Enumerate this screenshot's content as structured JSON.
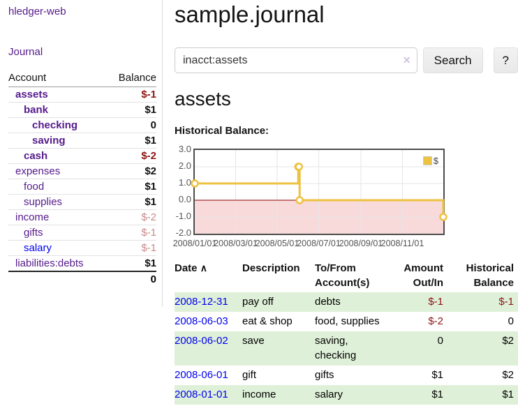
{
  "app": {
    "brand": "hledger-web",
    "nav_journal": "Journal"
  },
  "colors": {
    "visited_link": "#551a8b",
    "unvisited_link": "#0000ee",
    "negative_strong": "#8e1414",
    "negative_weak": "#c98a8a",
    "row_stripe_green": "#dff0d8",
    "chart_line": "#edc240",
    "chart_negative_region": "#f9dada",
    "chart_zero_line": "#8b0000"
  },
  "sidebar": {
    "header": {
      "account": "Account",
      "balance": "Balance"
    },
    "accounts": [
      {
        "name": "assets",
        "balance": "$-1",
        "depth": 1,
        "emphasis": true,
        "unvisited": false
      },
      {
        "name": "bank",
        "balance": "$1",
        "depth": 2,
        "emphasis": true,
        "unvisited": false
      },
      {
        "name": "checking",
        "balance": "0",
        "depth": 3,
        "emphasis": true,
        "unvisited": false
      },
      {
        "name": "saving",
        "balance": "$1",
        "depth": 3,
        "emphasis": true,
        "unvisited": false
      },
      {
        "name": "cash",
        "balance": "$-2",
        "depth": 2,
        "emphasis": true,
        "unvisited": false
      },
      {
        "name": "expenses",
        "balance": "$2",
        "depth": 1,
        "emphasis": false,
        "unvisited": false
      },
      {
        "name": "food",
        "balance": "$1",
        "depth": 2,
        "emphasis": false,
        "unvisited": false
      },
      {
        "name": "supplies",
        "balance": "$1",
        "depth": 2,
        "emphasis": false,
        "unvisited": false
      },
      {
        "name": "income",
        "balance": "$-2",
        "depth": 1,
        "emphasis": false,
        "unvisited": false
      },
      {
        "name": "gifts",
        "balance": "$-1",
        "depth": 2,
        "emphasis": false,
        "unvisited": false
      },
      {
        "name": "salary",
        "balance": "$-1",
        "depth": 2,
        "emphasis": false,
        "unvisited": true
      },
      {
        "name": "liabilities:debts",
        "balance": "$1",
        "depth": 1,
        "emphasis": false,
        "unvisited": false
      }
    ],
    "total": "0"
  },
  "header": {
    "title": "sample.journal"
  },
  "search": {
    "value": "inacct:assets",
    "clear_icon": "✕",
    "button_label": "Search",
    "help_label": "?"
  },
  "account_page": {
    "title": "assets",
    "chart_label": "Historical Balance:"
  },
  "chart_data": {
    "type": "line",
    "step": true,
    "title": "Historical Balance:",
    "series": [
      {
        "name": "$",
        "color": "#edc240",
        "points": [
          [
            "2008-01-01",
            1
          ],
          [
            "2008-06-01",
            2
          ],
          [
            "2008-06-02",
            2
          ],
          [
            "2008-06-03",
            0
          ],
          [
            "2008-12-31",
            -1
          ]
        ]
      }
    ],
    "xlim": [
      "2008-01-01",
      "2008-12-31"
    ],
    "ylim": [
      -2,
      3
    ],
    "y_ticks": [
      3.0,
      2.0,
      1.0,
      0.0,
      -1.0,
      -2.0
    ],
    "x_ticks": [
      "2008/01/01",
      "2008/03/01",
      "2008/05/01",
      "2008/07/01",
      "2008/09/01",
      "2008/11/01"
    ],
    "grid": true,
    "legend": "$",
    "legend_position": "top-right",
    "negative_region_color": "#f9dada",
    "zero_line_color": "#8b0000"
  },
  "register": {
    "columns": [
      "Date",
      "Description",
      "To/From Account(s)",
      "Amount Out/In",
      "Historical Balance"
    ],
    "sort_icon": "∧",
    "rows": [
      {
        "date": "2008-12-31",
        "description": "pay off",
        "accounts": "debts",
        "amount": "$-1",
        "balance": "$-1"
      },
      {
        "date": "2008-06-03",
        "description": "eat & shop",
        "accounts": "food, supplies",
        "amount": "$-2",
        "balance": "0"
      },
      {
        "date": "2008-06-02",
        "description": "save",
        "accounts": "saving, checking",
        "amount": "0",
        "balance": "$2"
      },
      {
        "date": "2008-06-01",
        "description": "gift",
        "accounts": "gifts",
        "amount": "$1",
        "balance": "$2"
      },
      {
        "date": "2008-01-01",
        "description": "income",
        "accounts": "salary",
        "amount": "$1",
        "balance": "$1"
      }
    ]
  }
}
